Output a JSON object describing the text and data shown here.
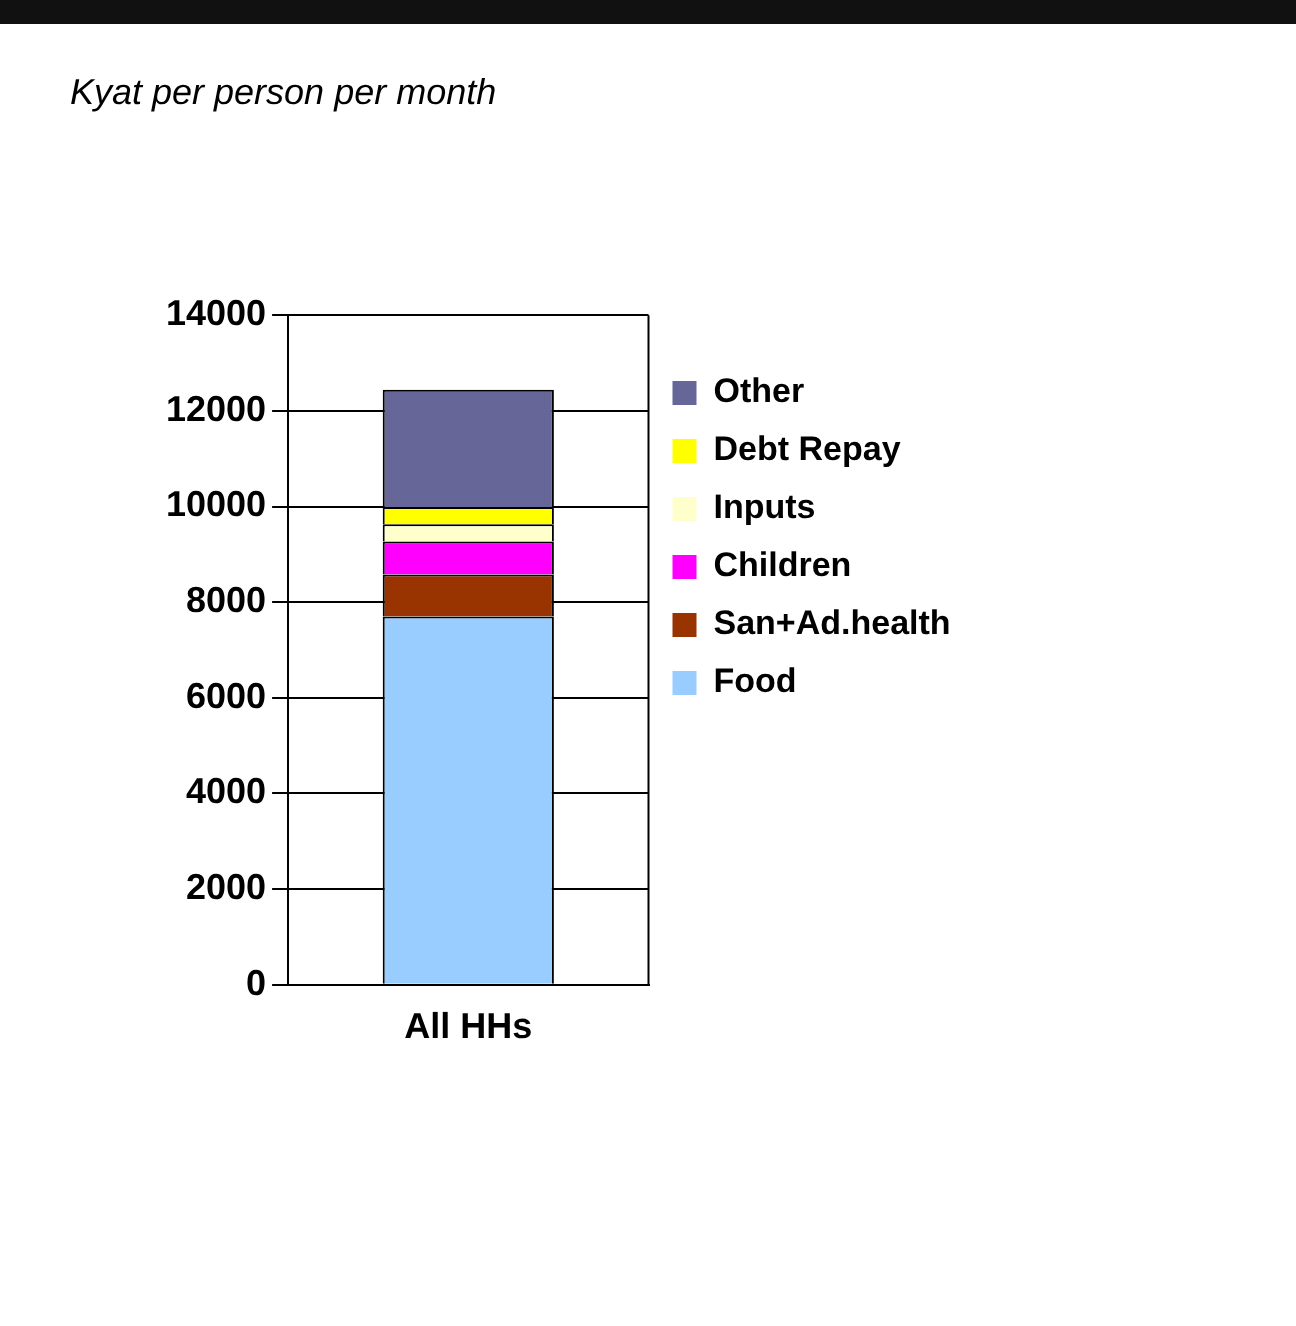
{
  "chart_data": {
    "type": "bar",
    "subtitle": "Kyat per person per month",
    "stacked": true,
    "categories": [
      "All HHs"
    ],
    "series": [
      {
        "name": "Food",
        "color": "#99ccff",
        "values": [
          7700
        ]
      },
      {
        "name": "San+Ad.health",
        "color": "#993300",
        "values": [
          880
        ]
      },
      {
        "name": "Children",
        "color": "#ff00ff",
        "values": [
          690
        ]
      },
      {
        "name": "Inputs",
        "color": "#ffffcc",
        "values": [
          360
        ]
      },
      {
        "name": "Debt Repay",
        "color": "#ffff00",
        "values": [
          360
        ]
      },
      {
        "name": "Other",
        "color": "#666699",
        "values": [
          2450
        ]
      }
    ],
    "ylim": [
      0,
      14000
    ],
    "yticks": [
      0,
      2000,
      4000,
      6000,
      8000,
      10000,
      12000,
      14000
    ],
    "grid": "y",
    "legend": "right"
  }
}
